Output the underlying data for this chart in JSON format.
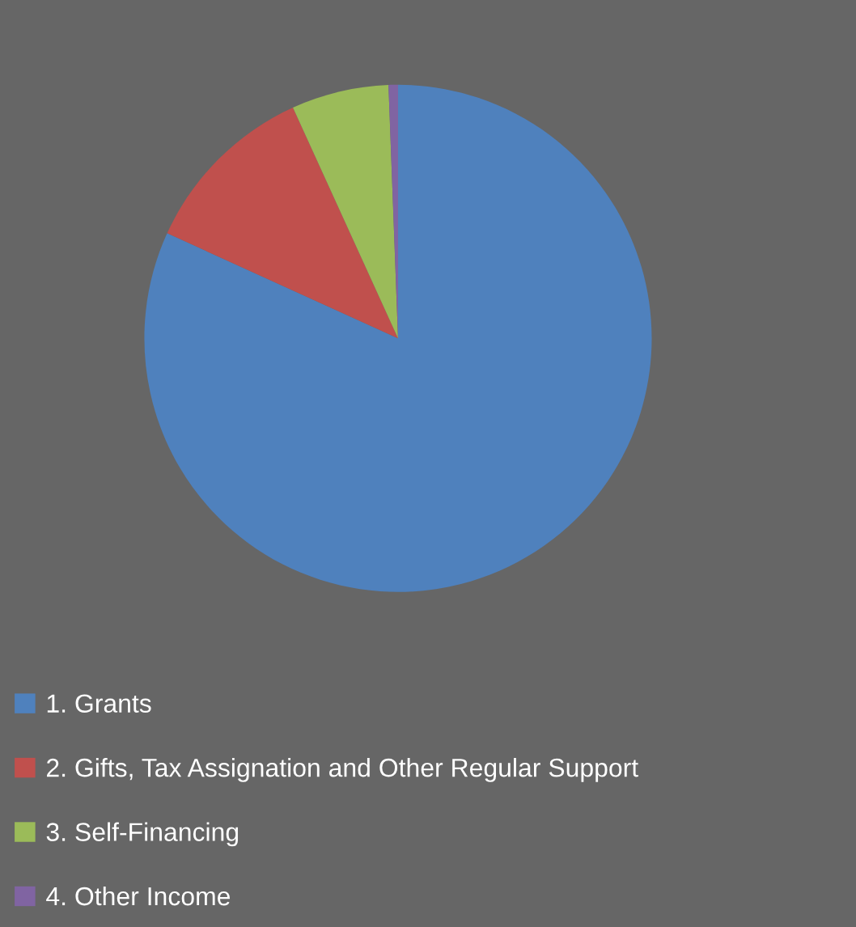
{
  "chart_data": {
    "type": "pie",
    "categories": [
      "1. Grants",
      "2. Gifts, Tax Assignation and Other Regular Support",
      "3. Self-Financing",
      "4. Other Income"
    ],
    "values": [
      81.8,
      11.4,
      6.2,
      0.6
    ],
    "colors": [
      "#4f81bd",
      "#c0504d",
      "#9bbb59",
      "#8064a2"
    ],
    "legend": "bottom left"
  }
}
